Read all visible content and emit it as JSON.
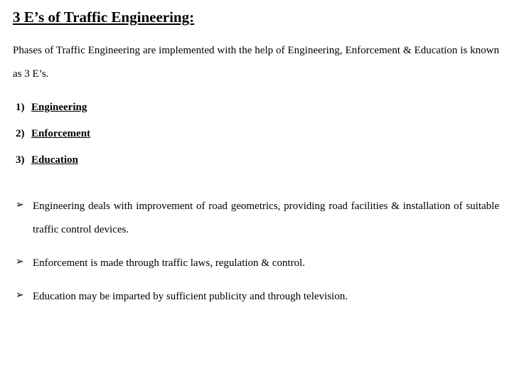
{
  "heading": "3 E’s of Traffic Engineering:",
  "intro": "Phases of Traffic Engineering are implemented with the help of Engineering, Enforcement & Education is known as 3 E’s.",
  "numbered": [
    {
      "n": "1)",
      "label": "Engineering"
    },
    {
      "n": "2)",
      "label": "Enforcement"
    },
    {
      "n": "3)",
      "label": "Education"
    }
  ],
  "bullets": [
    "Engineering deals with improvement of road geometrics, providing road facilities & installation of suitable traffic control devices.",
    "Enforcement is made through traffic laws, regulation & control.",
    "Education may be imparted by sufficient publicity and through television."
  ],
  "colors": {
    "background": "#ffffff",
    "text": "#000000"
  },
  "fonts": {
    "family": "Times New Roman",
    "heading_size_pt": 16,
    "body_size_pt": 11
  }
}
